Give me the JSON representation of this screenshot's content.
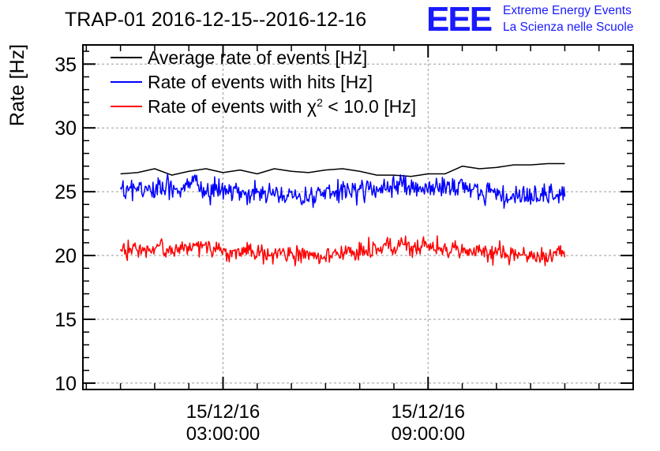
{
  "chart_data": {
    "type": "line",
    "title": "TRAP-01 2016-12-15--2016-12-16",
    "ylabel": "Rate [Hz]",
    "xlabel": "",
    "ylim": [
      9.5,
      36.5
    ],
    "yticks": [
      10,
      15,
      20,
      25,
      30,
      35
    ],
    "ytick_labels": [
      "10",
      "15",
      "20",
      "25",
      "30",
      "35"
    ],
    "x_unit": "hours since 2016-12-15 00:00",
    "xlim": [
      -1.1,
      15.0
    ],
    "xticks_major": [
      3,
      9
    ],
    "xtick_labels": [
      {
        "date": "15/12/16",
        "time": "03:00:00"
      },
      {
        "date": "15/12/16",
        "time": "09:00:00"
      }
    ],
    "xticks_minor": [
      -1,
      0,
      1,
      2,
      4,
      5,
      6,
      7,
      8,
      10,
      11,
      12,
      13,
      14
    ],
    "grid": true,
    "legend_position": "top-left",
    "series": [
      {
        "name": "Average rate of events [Hz]",
        "color": "#000000",
        "x": [
          0.0,
          0.5,
          1.0,
          1.5,
          2.0,
          2.5,
          3.0,
          3.5,
          4.0,
          4.5,
          5.0,
          5.5,
          6.0,
          6.5,
          7.0,
          7.5,
          8.0,
          8.5,
          9.0,
          9.5,
          10.0,
          10.5,
          11.0,
          11.5,
          12.0,
          12.5,
          13.0
        ],
        "values": [
          26.4,
          26.5,
          26.8,
          26.3,
          26.6,
          26.8,
          26.5,
          26.7,
          26.4,
          26.8,
          26.6,
          26.5,
          26.7,
          26.8,
          26.6,
          26.3,
          26.3,
          26.2,
          26.4,
          26.4,
          27.0,
          26.8,
          26.9,
          27.1,
          27.1,
          27.2,
          27.2
        ]
      },
      {
        "name": "Rate of events with hits [Hz]",
        "color": "#0000ff",
        "x_start": 0.0,
        "x_end": 13.0,
        "n_points": 520,
        "mean": 25.0,
        "noise_amplitude": 0.6,
        "range": [
          22.8,
          27.3
        ]
      },
      {
        "name": "Rate of events with χ² < 10.0 [Hz]",
        "color": "#ff0000",
        "x_start": 0.0,
        "x_end": 13.0,
        "n_points": 520,
        "mean": 20.3,
        "noise_amplitude": 0.5,
        "range": [
          18.3,
          22.6
        ]
      }
    ]
  },
  "legend_labels": [
    {
      "prefix": "Average rate of events [Hz]",
      "sup": "",
      "suffix": ""
    },
    {
      "prefix": "Rate of events with hits [Hz]",
      "sup": "",
      "suffix": ""
    },
    {
      "prefix": "Rate of events with χ",
      "sup": "2",
      "suffix": " < 10.0 [Hz]"
    }
  ],
  "logo": {
    "mark": "EEE",
    "line1": "Extreme Energy Events",
    "line2": "La Scienza nelle Scuole",
    "color": "#1a1aff"
  }
}
